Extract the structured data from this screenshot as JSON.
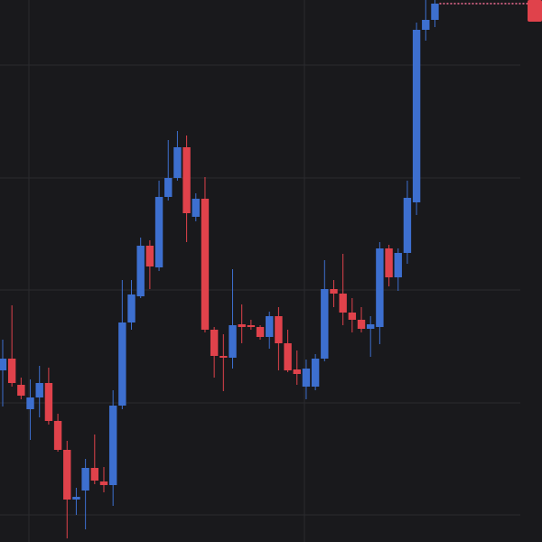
{
  "chart_data": {
    "type": "candlestick",
    "categories": [
      null,
      null,
      null,
      null,
      null,
      null,
      null,
      null,
      null,
      null,
      null,
      null,
      null,
      null,
      null,
      null,
      null,
      null,
      null,
      null,
      null,
      null,
      null,
      null,
      null,
      null,
      null,
      null,
      null,
      null,
      null,
      null,
      null,
      null,
      null,
      null,
      null,
      null,
      null,
      null,
      null,
      null,
      null,
      null,
      null,
      null,
      null,
      null
    ],
    "open": [
      190,
      203,
      174,
      147,
      160,
      176,
      134,
      102,
      47,
      57,
      82,
      67,
      63,
      151,
      243,
      272,
      328,
      304,
      382,
      403,
      437,
      360,
      380,
      235,
      206,
      204,
      241,
      240,
      238,
      227,
      250,
      220,
      191,
      172,
      172,
      203,
      280,
      275,
      254,
      246,
      236,
      238,
      325,
      293,
      320,
      376,
      567,
      578
    ],
    "high": [
      224,
      262,
      182,
      180,
      195,
      193,
      142,
      112,
      60,
      92,
      119,
      83,
      168,
      290,
      290,
      337,
      334,
      400,
      445,
      455,
      450,
      386,
      404,
      238,
      230,
      302,
      263,
      246,
      240,
      255,
      260,
      235,
      212,
      202,
      208,
      312,
      290,
      319,
      270,
      260,
      250,
      332,
      329,
      325,
      400,
      575,
      600,
      600
    ],
    "low": [
      150,
      172,
      158,
      113,
      138,
      130,
      100,
      4,
      30,
      14,
      64,
      55,
      40,
      147,
      235,
      270,
      280,
      300,
      378,
      400,
      332,
      355,
      232,
      182,
      167,
      192,
      220,
      235,
      224,
      214,
      190,
      188,
      174,
      158,
      168,
      200,
      260,
      240,
      232,
      232,
      205,
      219,
      283,
      278,
      308,
      362,
      555,
      570
    ],
    "close": [
      203,
      176,
      162,
      160,
      176,
      134,
      102,
      47,
      50,
      82,
      68,
      63,
      151,
      243,
      274,
      328,
      305,
      382,
      403,
      437,
      364,
      380,
      235,
      206,
      204,
      240,
      238,
      238,
      227,
      250,
      220,
      190,
      186,
      192,
      203,
      280,
      275,
      254,
      246,
      236,
      241,
      325,
      293,
      320,
      381,
      567,
      578,
      596
    ],
    "up_color": "#3d6fcf",
    "down_color": "#e0424b",
    "ylim": [
      0,
      600
    ],
    "yticks": [
      30,
      154,
      279,
      403,
      528
    ],
    "grid": true
  }
}
